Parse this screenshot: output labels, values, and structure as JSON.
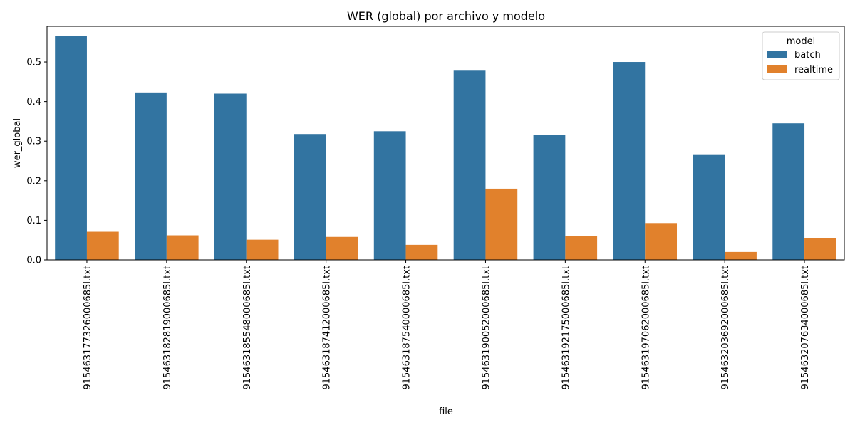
{
  "chart_data": {
    "type": "bar",
    "title": "WER (global) por archivo y modelo",
    "xlabel": "file",
    "ylabel": "wer_global",
    "ylim": [
      0,
      0.59
    ],
    "yticks": [
      "0.0",
      "0.1",
      "0.2",
      "0.3",
      "0.4",
      "0.5"
    ],
    "grid": false,
    "legend": {
      "title": "model",
      "placement": "top-right"
    },
    "categories": [
      "915463177326000685l.txt",
      "915463182819000685l.txt",
      "915463185548000685l.txt",
      "915463187412000685l.txt",
      "915463187540000685l.txt",
      "915463190052000685l.txt",
      "915463192175000685l.txt",
      "915463197062000685l.txt",
      "915463203692000685l.txt",
      "915463207634000685l.txt"
    ],
    "series": [
      {
        "name": "batch",
        "color": "#3274a1",
        "values": [
          0.565,
          0.423,
          0.42,
          0.318,
          0.325,
          0.478,
          0.315,
          0.5,
          0.265,
          0.345
        ]
      },
      {
        "name": "realtime",
        "color": "#e1812c",
        "values": [
          0.071,
          0.062,
          0.051,
          0.058,
          0.038,
          0.18,
          0.06,
          0.093,
          0.02,
          0.055
        ]
      }
    ]
  }
}
